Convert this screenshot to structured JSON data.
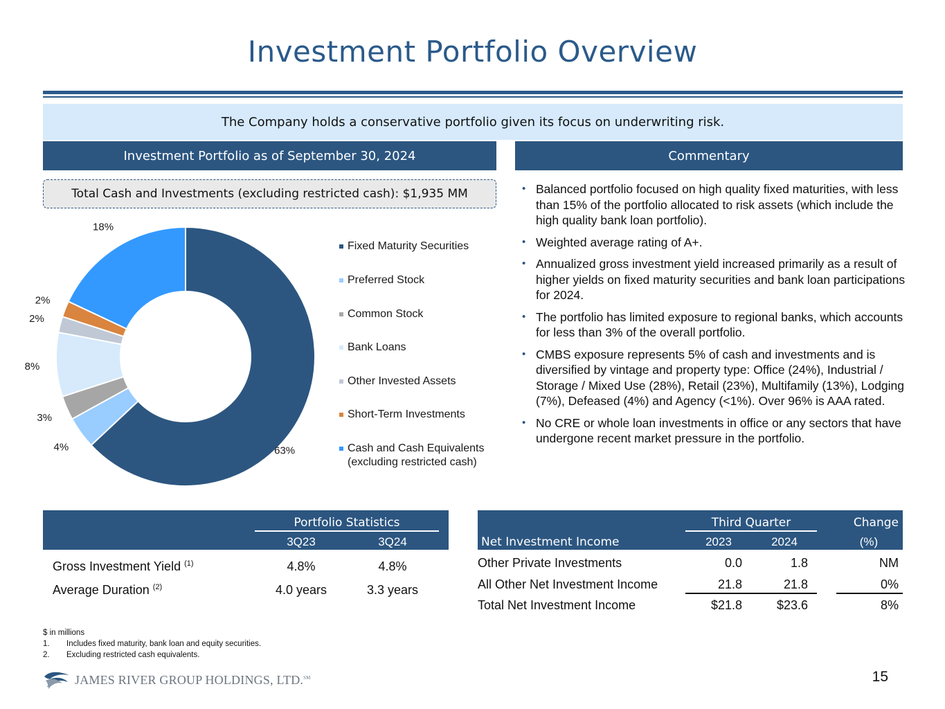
{
  "title": "Investment Portfolio Overview",
  "tagline": "The Company holds a conservative portfolio given its focus on underwriting risk.",
  "left_header": "Investment Portfolio as of September 30, 2024",
  "right_header": "Commentary",
  "total_box": "Total Cash and Investments (excluding restricted cash): $1,935 MM",
  "chart_data": {
    "type": "pie",
    "title": "Investment Portfolio as of September 30, 2024",
    "donut": true,
    "slices": [
      {
        "label": "Fixed Maturity Securities",
        "value": 63,
        "display": "63%",
        "color": "#2c5680"
      },
      {
        "label": "Preferred Stock",
        "value": 4,
        "display": "4%",
        "color": "#99ccff"
      },
      {
        "label": "Common Stock",
        "value": 3,
        "display": "3%",
        "color": "#a6a6a6"
      },
      {
        "label": "Bank Loans",
        "value": 8,
        "display": "8%",
        "color": "#d6eafc"
      },
      {
        "label": "Other Invested Assets",
        "value": 2,
        "display": "2%",
        "color": "#bfc8d4"
      },
      {
        "label": "Short-Term Investments",
        "value": 2,
        "display": "2%",
        "color": "#d9843f"
      },
      {
        "label": "Cash and Cash Equivalents (excluding restricted cash)",
        "value": 18,
        "display": "18%",
        "color": "#3399ff"
      }
    ],
    "legend": [
      {
        "line1": "Fixed Maturity Securities",
        "line2": ""
      },
      {
        "line1": "Preferred Stock",
        "line2": ""
      },
      {
        "line1": "Common Stock",
        "line2": ""
      },
      {
        "line1": "Bank Loans",
        "line2": ""
      },
      {
        "line1": "Other Invested Assets",
        "line2": ""
      },
      {
        "line1": "Short-Term Investments",
        "line2": ""
      },
      {
        "line1": "Cash and Cash Equivalents",
        "line2": "(excluding restricted cash)"
      }
    ]
  },
  "commentary": [
    "Balanced portfolio focused on high quality fixed maturities, with less than 15% of the portfolio allocated to risk assets (which include the high quality bank loan portfolio).",
    "Weighted average rating of A+.",
    "Annualized gross investment yield increased primarily as a result of higher yields on fixed maturity securities and bank loan participations for 2024.",
    "The portfolio has limited exposure to regional banks, which accounts for less than 3% of the overall portfolio.",
    "CMBS exposure represents 5% of cash and investments and is diversified by vintage and property type: Office (24%), Industrial / Storage / Mixed Use (28%), Retail (23%), Multifamily (13%), Lodging (7%), Defeased (4%) and Agency (<1%). Over 96% is AAA rated.",
    "No CRE or whole loan investments in office or any sectors that have undergone recent market pressure in the portfolio."
  ],
  "portfolio_stats": {
    "title": "Portfolio Statistics",
    "col1": "3Q23",
    "col2": "3Q24",
    "rows": [
      {
        "label": "Gross Investment Yield",
        "note": "(1)",
        "v1": "4.8%",
        "v2": "4.8%"
      },
      {
        "label": "Average Duration",
        "note": "(2)",
        "v1": "4.0 years",
        "v2": "3.3 years"
      }
    ]
  },
  "nii": {
    "title": "Net Investment Income",
    "group": "Third Quarter",
    "col1": "2023",
    "col2": "2024",
    "change_line1": "Change",
    "change_line2": "(%)",
    "rows": [
      {
        "label": "Other Private Investments",
        "v1": "0.0",
        "v2": "1.8",
        "chg": "NM"
      },
      {
        "label": "All Other Net Investment Income",
        "v1": "21.8",
        "v2": "21.8",
        "chg": "0%"
      },
      {
        "label": "Total Net Investment Income",
        "v1": "$21.8",
        "v2": "$23.6",
        "chg": "8%"
      }
    ]
  },
  "footnotes": {
    "units": "$ in millions",
    "items": [
      {
        "num": "1.",
        "text": "Includes fixed maturity, bank loan and equity securities."
      },
      {
        "num": "2.",
        "text": "Excluding restricted cash equivalents."
      }
    ]
  },
  "logo_text": "JAMES RIVER GROUP HOLDINGS, LTD.",
  "logo_tm": "SM",
  "page_number": "15",
  "colors": {
    "brand": "#2c5680",
    "title": "#2b5a8a",
    "band": "#d6eafc"
  }
}
